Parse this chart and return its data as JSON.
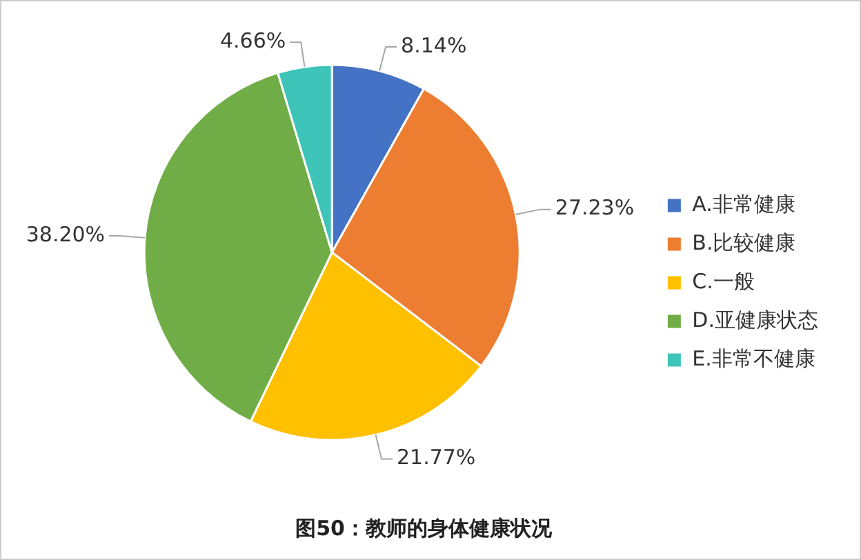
{
  "chart_data": {
    "type": "pie",
    "title": "图50：教师的身体健康状况",
    "categories": [
      "A.非常健康",
      "B.比较健康",
      "C.一般",
      "D.亚健康状态",
      "E.非常不健康"
    ],
    "values": [
      8.14,
      27.23,
      21.77,
      38.2,
      4.66
    ],
    "value_labels": [
      "8.14%",
      "27.23%",
      "21.77%",
      "38.20%",
      "4.66%"
    ],
    "colors": [
      "#4472c4",
      "#ed7d31",
      "#ffc000",
      "#70ad47",
      "#3ec4b8"
    ],
    "legend": "right"
  }
}
